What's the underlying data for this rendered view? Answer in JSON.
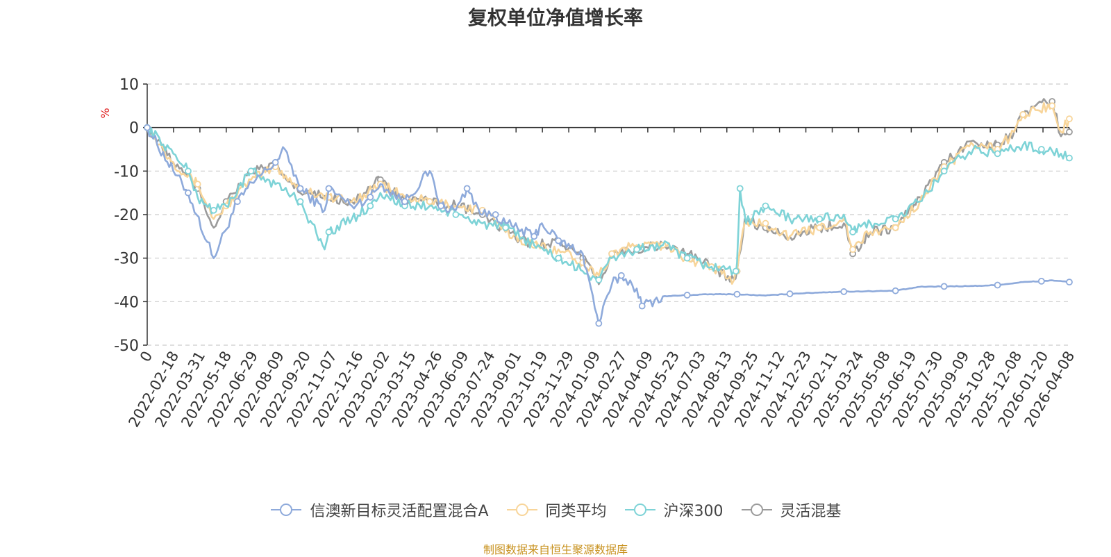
{
  "chart_data": {
    "type": "line",
    "title": "复权单位净值增长率",
    "ylabel": "%",
    "ylim": [
      -50,
      10
    ],
    "yticks": [
      10,
      0,
      -10,
      -20,
      -30,
      -40,
      -50
    ],
    "xlim": [
      "2022-01-05",
      "2026-04-08"
    ],
    "xtick_labels": [
      "0",
      "2022-02-18",
      "2022-03-31",
      "2022-05-18",
      "2022-06-29",
      "2022-08-09",
      "2022-09-20",
      "2022-11-07",
      "2022-12-16",
      "2023-02-02",
      "2023-03-15",
      "2023-04-26",
      "2023-06-09",
      "2023-07-24",
      "2023-09-01",
      "2023-10-19",
      "2023-11-29",
      "2024-01-09",
      "2024-02-27",
      "2024-04-09",
      "2024-05-23",
      "2024-07-03",
      "2024-08-13",
      "2024-09-25",
      "2024-11-12",
      "2024-12-23",
      "2025-02-11",
      "2025-03-24",
      "2025-05-08",
      "2025-06-19",
      "2025-07-30",
      "2025-09-09",
      "2025-10-28",
      "2025-12-08",
      "2026-01-20",
      "2026-04-08"
    ],
    "grid": true,
    "legend_position": "bottom",
    "series": [
      {
        "name": "信澳新目标灵活配置混合A",
        "color": "#8eaadb",
        "x": [
          "2022-01-05",
          "2022-02-18",
          "2022-03-15",
          "2022-04-27",
          "2022-06-06",
          "2022-07-07",
          "2022-08-09",
          "2022-08-25",
          "2022-09-20",
          "2022-10-31",
          "2022-11-07",
          "2022-12-16",
          "2023-01-16",
          "2023-02-02",
          "2023-03-15",
          "2023-04-26",
          "2023-05-15",
          "2023-06-09",
          "2023-06-28",
          "2023-07-24",
          "2023-08-15",
          "2023-09-01",
          "2023-10-19",
          "2023-11-01",
          "2023-11-29",
          "2024-01-09",
          "2024-02-05",
          "2024-02-27",
          "2024-03-14",
          "2024-04-09",
          "2024-04-18",
          "2024-05-23",
          "2024-07-03",
          "2024-08-13",
          "2024-09-25",
          "2024-11-12",
          "2024-12-23",
          "2025-02-11",
          "2025-03-24",
          "2025-05-08",
          "2025-06-19",
          "2025-07-30",
          "2025-09-09",
          "2025-10-28",
          "2025-12-08",
          "2026-01-20",
          "2026-02-20",
          "2026-03-10",
          "2026-04-08"
        ],
        "y": [
          0,
          -10,
          -15,
          -30,
          -17,
          -12,
          -8,
          -5,
          -14,
          -19,
          -14,
          -18,
          -16,
          -13,
          -17,
          -10,
          -18,
          -19,
          -14,
          -20,
          -20,
          -22,
          -25,
          -22,
          -26,
          -29,
          -45,
          -36,
          -34,
          -37,
          -41,
          -38.8,
          -38.5,
          -38.3,
          -38.3,
          -38.6,
          -38.2,
          -37.9,
          -37.7,
          -37.6,
          -37.5,
          -36.6,
          -36.5,
          -36.4,
          -36.2,
          -35.5,
          -35.3,
          -35.1,
          -35.5
        ]
      },
      {
        "name": "同类平均",
        "color": "#f8d59a",
        "x": [
          "2022-01-05",
          "2022-02-18",
          "2022-03-31",
          "2022-04-27",
          "2022-05-18",
          "2022-06-29",
          "2022-08-09",
          "2022-09-20",
          "2022-11-07",
          "2022-12-16",
          "2023-02-02",
          "2023-03-15",
          "2023-04-26",
          "2023-06-09",
          "2023-07-24",
          "2023-09-01",
          "2023-10-19",
          "2023-11-29",
          "2024-01-09",
          "2024-02-05",
          "2024-02-27",
          "2024-04-09",
          "2024-05-23",
          "2024-07-03",
          "2024-08-13",
          "2024-09-20",
          "2024-09-25",
          "2024-10-08",
          "2024-11-12",
          "2024-12-23",
          "2025-02-11",
          "2025-03-24",
          "2025-04-08",
          "2025-05-08",
          "2025-06-19",
          "2025-07-30",
          "2025-09-09",
          "2025-10-28",
          "2025-12-08",
          "2026-01-05",
          "2026-01-20",
          "2026-02-10",
          "2026-03-10",
          "2026-03-25",
          "2026-04-08"
        ],
        "y": [
          0,
          -8,
          -13,
          -21,
          -18,
          -12,
          -9,
          -14,
          -16,
          -17,
          -13,
          -16,
          -17,
          -18,
          -19,
          -24,
          -27,
          -28,
          -31,
          -34,
          -29,
          -27,
          -27,
          -30,
          -32,
          -35,
          -33,
          -22,
          -22,
          -25,
          -23,
          -21,
          -28,
          -24,
          -23,
          -17,
          -9,
          -4,
          -5,
          -1,
          3,
          4,
          5,
          -1,
          2
        ]
      },
      {
        "name": "沪深300",
        "color": "#7ed3d7",
        "x": [
          "2022-01-05",
          "2022-02-18",
          "2022-03-15",
          "2022-03-31",
          "2022-04-27",
          "2022-05-18",
          "2022-06-29",
          "2022-08-09",
          "2022-09-20",
          "2022-10-31",
          "2022-11-07",
          "2022-12-16",
          "2023-01-16",
          "2023-02-02",
          "2023-03-15",
          "2023-04-26",
          "2023-06-09",
          "2023-07-24",
          "2023-09-01",
          "2023-10-19",
          "2023-11-29",
          "2024-01-09",
          "2024-02-05",
          "2024-02-27",
          "2024-04-09",
          "2024-05-23",
          "2024-07-03",
          "2024-08-13",
          "2024-09-23",
          "2024-09-25",
          "2024-09-30",
          "2024-10-10",
          "2024-11-12",
          "2024-12-23",
          "2025-02-11",
          "2025-03-24",
          "2025-04-08",
          "2025-05-08",
          "2025-06-19",
          "2025-07-30",
          "2025-09-09",
          "2025-10-28",
          "2025-12-08",
          "2026-01-20",
          "2026-02-20",
          "2026-03-25",
          "2026-04-08"
        ],
        "y": [
          0,
          -6,
          -10,
          -16,
          -19,
          -18,
          -10,
          -13,
          -17,
          -28,
          -24,
          -21,
          -18,
          -15,
          -18,
          -18,
          -20,
          -22,
          -23,
          -27,
          -30,
          -33,
          -35,
          -30,
          -28,
          -27,
          -30,
          -32,
          -33,
          -31,
          -14,
          -22,
          -18,
          -21,
          -21,
          -20,
          -24,
          -22,
          -21,
          -17,
          -10,
          -5,
          -6,
          -4,
          -5,
          -6,
          -7
        ]
      },
      {
        "name": "灵活混基",
        "color": "#9b9b9b",
        "x": [
          "2022-01-05",
          "2022-02-18",
          "2022-03-31",
          "2022-04-27",
          "2022-05-18",
          "2022-06-29",
          "2022-08-09",
          "2022-09-20",
          "2022-11-07",
          "2022-12-16",
          "2023-02-02",
          "2023-03-15",
          "2023-04-26",
          "2023-06-09",
          "2023-07-24",
          "2023-09-01",
          "2023-10-19",
          "2023-11-29",
          "2024-01-09",
          "2024-02-05",
          "2024-02-27",
          "2024-04-09",
          "2024-05-23",
          "2024-07-03",
          "2024-08-13",
          "2024-09-20",
          "2024-09-25",
          "2024-10-08",
          "2024-11-12",
          "2024-12-23",
          "2025-02-11",
          "2025-03-24",
          "2025-04-08",
          "2025-05-08",
          "2025-06-19",
          "2025-07-30",
          "2025-09-09",
          "2025-10-28",
          "2025-12-08",
          "2026-01-05",
          "2026-01-20",
          "2026-02-10",
          "2026-03-10",
          "2026-03-25",
          "2026-04-08"
        ],
        "y": [
          0,
          -8,
          -14,
          -23,
          -17,
          -10,
          -9,
          -15,
          -16,
          -17,
          -12,
          -17,
          -17,
          -18,
          -20,
          -24,
          -27,
          -26,
          -30,
          -36,
          -29,
          -28,
          -27,
          -29,
          -32,
          -35,
          -33,
          -21,
          -23,
          -25,
          -23,
          -22,
          -29,
          -24,
          -23,
          -16,
          -8,
          -3,
          -4,
          -1,
          3,
          5,
          6,
          -2,
          -1
        ]
      }
    ]
  },
  "source_note": "制图数据来自恒生聚源数据库"
}
